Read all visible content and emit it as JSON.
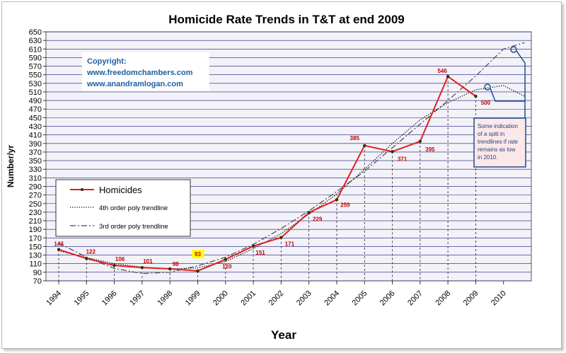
{
  "chart_data": {
    "type": "line",
    "title": "Homicide Rate Trends in T&T at end 2009",
    "xlabel": "Year",
    "ylabel": "Number/yr",
    "ylim": [
      70,
      650
    ],
    "yticks": [
      70,
      90,
      110,
      130,
      150,
      170,
      190,
      210,
      230,
      250,
      270,
      290,
      310,
      330,
      350,
      370,
      390,
      410,
      430,
      450,
      470,
      490,
      510,
      530,
      550,
      570,
      590,
      610,
      630,
      650
    ],
    "categories": [
      "1994",
      "1995",
      "1996",
      "1997",
      "1998",
      "1999",
      "2000",
      "2001",
      "2002",
      "2003",
      "2004",
      "2005",
      "2006",
      "2007",
      "2008",
      "2009",
      "2010"
    ],
    "series": [
      {
        "name": "Homicides",
        "color": "#e02020",
        "x": [
          1994,
          1995,
          1996,
          1997,
          1998,
          1999,
          2000,
          2001,
          2002,
          2003,
          2004,
          2005,
          2006,
          2007,
          2008,
          2009
        ],
        "values": [
          143,
          122,
          106,
          101,
          98,
          93,
          120,
          151,
          171,
          229,
          259,
          385,
          371,
          395,
          546,
          500
        ]
      },
      {
        "name": "4th order poly trendline",
        "style": "dotted",
        "x": [
          1994,
          1995,
          1996,
          1997,
          1998,
          1999,
          2000,
          2001,
          2002,
          2003,
          2004,
          2005,
          2006,
          2007,
          2008,
          2009,
          2010,
          2010.75
        ],
        "values": [
          140,
          124,
          110,
          102,
          98,
          100,
          115,
          145,
          180,
          225,
          272,
          330,
          390,
          445,
          485,
          515,
          525,
          500
        ]
      },
      {
        "name": "3rd order poly trendline",
        "style": "dashdot",
        "x": [
          1994,
          1995,
          1996,
          1997,
          1998,
          1999,
          2000,
          2001,
          2002,
          2003,
          2004,
          2005,
          2006,
          2007,
          2008,
          2009,
          2010,
          2010.75
        ],
        "values": [
          158,
          125,
          99,
          87,
          90,
          105,
          125,
          155,
          192,
          233,
          278,
          325,
          380,
          435,
          490,
          547,
          610,
          625
        ]
      }
    ],
    "data_labels": [
      "143",
      "122",
      "106",
      "101",
      "98",
      "93",
      "120",
      "151",
      "171",
      "229",
      "259",
      "385",
      "371",
      "395",
      "546",
      "500"
    ],
    "highlight_label": "93",
    "grid": true,
    "legend_position": "left-middle"
  },
  "copyright": {
    "line1": "Copyright:",
    "line2": "www.freedomchambers.com",
    "line3": "www.anandramlogan.com"
  },
  "annotation": {
    "lines": [
      "Some indication",
      "of a split in",
      "trendlines if rate",
      "remains as low",
      "in 2010."
    ]
  },
  "colors": {
    "plot_background": "#f2f2f8",
    "gridline": "#000080",
    "homicides": "#e02020",
    "marker": "#333300",
    "callout_border": "#1f4f8f",
    "callout_fill": "#fce8e8"
  }
}
